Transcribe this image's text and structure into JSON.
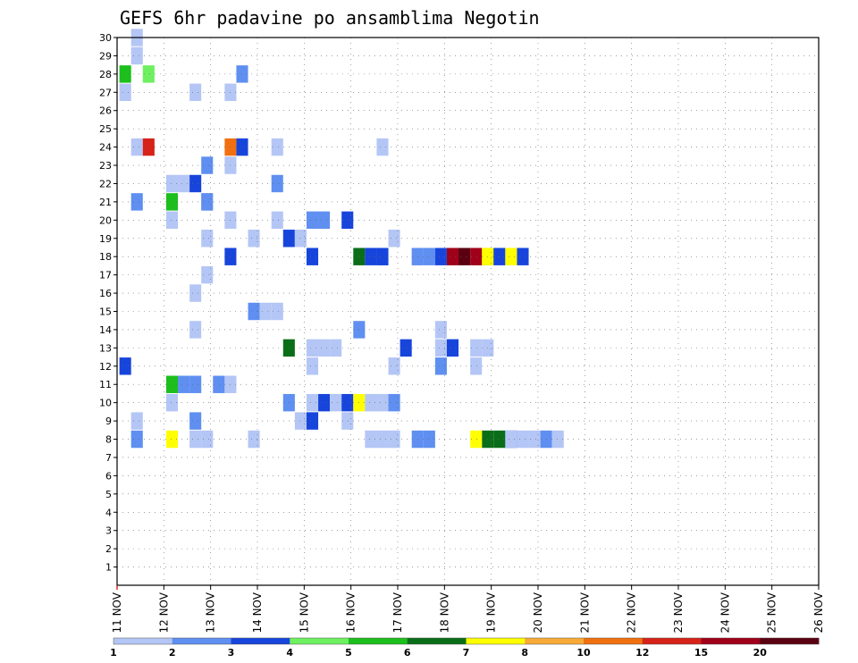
{
  "chart_data": {
    "type": "heatmap",
    "title": "GEFS 6hr padavine po ansamblima Negotin",
    "xlabel": "",
    "ylabel": "",
    "x_range_days": [
      11,
      26
    ],
    "y_range_members": [
      0,
      30
    ],
    "x_tick_labels": [
      "11 NOV",
      "12 NOV",
      "13 NOV",
      "14 NOV",
      "15 NOV",
      "16 NOV",
      "17 NOV",
      "18 NOV",
      "19 NOV",
      "20 NOV",
      "21 NOV",
      "22 NOV",
      "23 NOV",
      "24 NOV",
      "25 NOV",
      "26 NOV"
    ],
    "y_tick_labels": [
      "1",
      "2",
      "3",
      "4",
      "5",
      "6",
      "7",
      "8",
      "9",
      "10",
      "11",
      "12",
      "13",
      "14",
      "15",
      "16",
      "17",
      "18",
      "19",
      "20",
      "21",
      "22",
      "23",
      "24",
      "25",
      "26",
      "27",
      "28",
      "29",
      "30"
    ],
    "grid": true,
    "colorbar": {
      "labels": [
        "1",
        "2",
        "3",
        "4",
        "5",
        "6",
        "7",
        "8",
        "10",
        "12",
        "15",
        "20"
      ],
      "colors": [
        "#b4c6f5",
        "#5f8ff0",
        "#1745dc",
        "#6ef060",
        "#1cbf1c",
        "#0a6e18",
        "#ffff00",
        "#f8aa38",
        "#f07010",
        "#d62218",
        "#a0001a",
        "#5a0010"
      ]
    },
    "cells": [
      [
        0,
        1,
        30
      ],
      [
        0,
        1,
        29
      ],
      [
        1,
        10,
        28
      ],
      [
        3,
        2,
        28
      ],
      [
        4,
        0,
        28
      ],
      [
        0,
        0,
        27
      ],
      [
        0,
        6,
        27
      ],
      [
        0,
        9,
        27
      ],
      [
        0,
        13,
        24
      ],
      [
        2,
        10,
        24
      ],
      [
        0,
        1,
        24
      ],
      [
        9,
        2,
        24
      ],
      [
        8,
        9,
        24
      ],
      [
        0,
        22,
        24
      ],
      [
        1,
        7,
        23
      ],
      [
        0,
        9,
        23
      ],
      [
        0,
        5,
        22
      ],
      [
        0,
        4,
        22
      ],
      [
        2,
        6,
        22
      ],
      [
        1,
        13,
        22
      ],
      [
        0,
        7,
        21
      ],
      [
        1,
        7,
        21
      ],
      [
        1,
        1,
        21
      ],
      [
        4,
        4,
        21
      ],
      [
        0,
        4,
        20
      ],
      [
        0,
        9,
        20
      ],
      [
        0,
        13,
        20
      ],
      [
        1,
        16,
        20
      ],
      [
        1,
        17,
        20
      ],
      [
        2,
        19,
        20
      ],
      [
        0,
        7,
        19
      ],
      [
        2,
        14,
        19
      ],
      [
        0,
        15,
        19
      ],
      [
        0,
        11,
        19
      ],
      [
        0,
        23,
        19
      ],
      [
        2,
        16,
        18
      ],
      [
        2,
        9,
        18
      ],
      [
        1,
        22,
        18
      ],
      [
        0,
        25,
        18
      ],
      [
        5,
        31,
        18
      ],
      [
        5,
        20,
        18
      ],
      [
        2,
        21,
        18
      ],
      [
        2,
        22,
        18
      ],
      [
        1,
        25,
        18
      ],
      [
        1,
        26,
        18
      ],
      [
        2,
        27,
        18
      ],
      [
        10,
        28,
        18
      ],
      [
        11,
        29,
        18
      ],
      [
        10,
        30,
        18
      ],
      [
        6,
        31,
        18
      ],
      [
        2,
        32,
        18
      ],
      [
        6,
        33,
        18
      ],
      [
        2,
        34,
        18
      ],
      [
        0,
        7,
        17
      ],
      [
        0,
        6,
        16
      ],
      [
        0,
        13,
        15
      ],
      [
        1,
        11,
        15
      ],
      [
        0,
        12,
        15
      ],
      [
        0,
        6,
        14
      ],
      [
        1,
        20,
        14
      ],
      [
        0,
        27,
        14
      ],
      [
        5,
        14,
        13
      ],
      [
        0,
        17,
        13
      ],
      [
        0,
        18,
        13
      ],
      [
        2,
        24,
        13
      ],
      [
        0,
        27,
        13
      ],
      [
        0,
        28,
        13
      ],
      [
        2,
        28,
        13
      ],
      [
        0,
        16,
        13
      ],
      [
        0,
        16,
        12
      ],
      [
        0,
        30,
        13
      ],
      [
        0,
        31,
        13
      ],
      [
        0,
        23,
        12
      ],
      [
        0,
        30,
        12
      ],
      [
        1,
        27,
        12
      ],
      [
        2,
        0,
        12
      ],
      [
        0,
        4,
        11
      ],
      [
        1,
        5,
        11
      ],
      [
        4,
        4,
        11
      ],
      [
        1,
        6,
        11
      ],
      [
        1,
        8,
        11
      ],
      [
        0,
        9,
        11
      ],
      [
        0,
        4,
        10
      ],
      [
        2,
        17,
        10
      ],
      [
        0,
        16,
        10
      ],
      [
        1,
        14,
        10
      ],
      [
        0,
        18,
        10
      ],
      [
        2,
        19,
        10
      ],
      [
        6,
        20,
        10
      ],
      [
        0,
        21,
        10
      ],
      [
        0,
        22,
        10
      ],
      [
        1,
        23,
        10
      ],
      [
        0,
        1,
        9
      ],
      [
        1,
        6,
        9
      ],
      [
        0,
        16,
        9
      ],
      [
        0,
        19,
        9
      ],
      [
        0,
        15,
        9
      ],
      [
        2,
        16,
        9
      ],
      [
        0,
        6,
        8
      ],
      [
        0,
        7,
        8
      ],
      [
        1,
        1,
        8
      ],
      [
        0,
        11,
        8
      ],
      [
        6,
        4,
        8
      ],
      [
        0,
        21,
        8
      ],
      [
        0,
        22,
        8
      ],
      [
        0,
        23,
        8
      ],
      [
        1,
        25,
        8
      ],
      [
        1,
        26,
        8
      ],
      [
        5,
        32,
        8
      ],
      [
        5,
        31,
        8
      ],
      [
        6,
        30,
        8
      ],
      [
        2,
        33,
        8
      ],
      [
        0,
        34,
        8
      ],
      [
        0,
        35,
        8
      ],
      [
        0,
        33,
        8
      ],
      [
        1,
        36,
        8
      ],
      [
        0,
        37,
        8
      ]
    ]
  }
}
